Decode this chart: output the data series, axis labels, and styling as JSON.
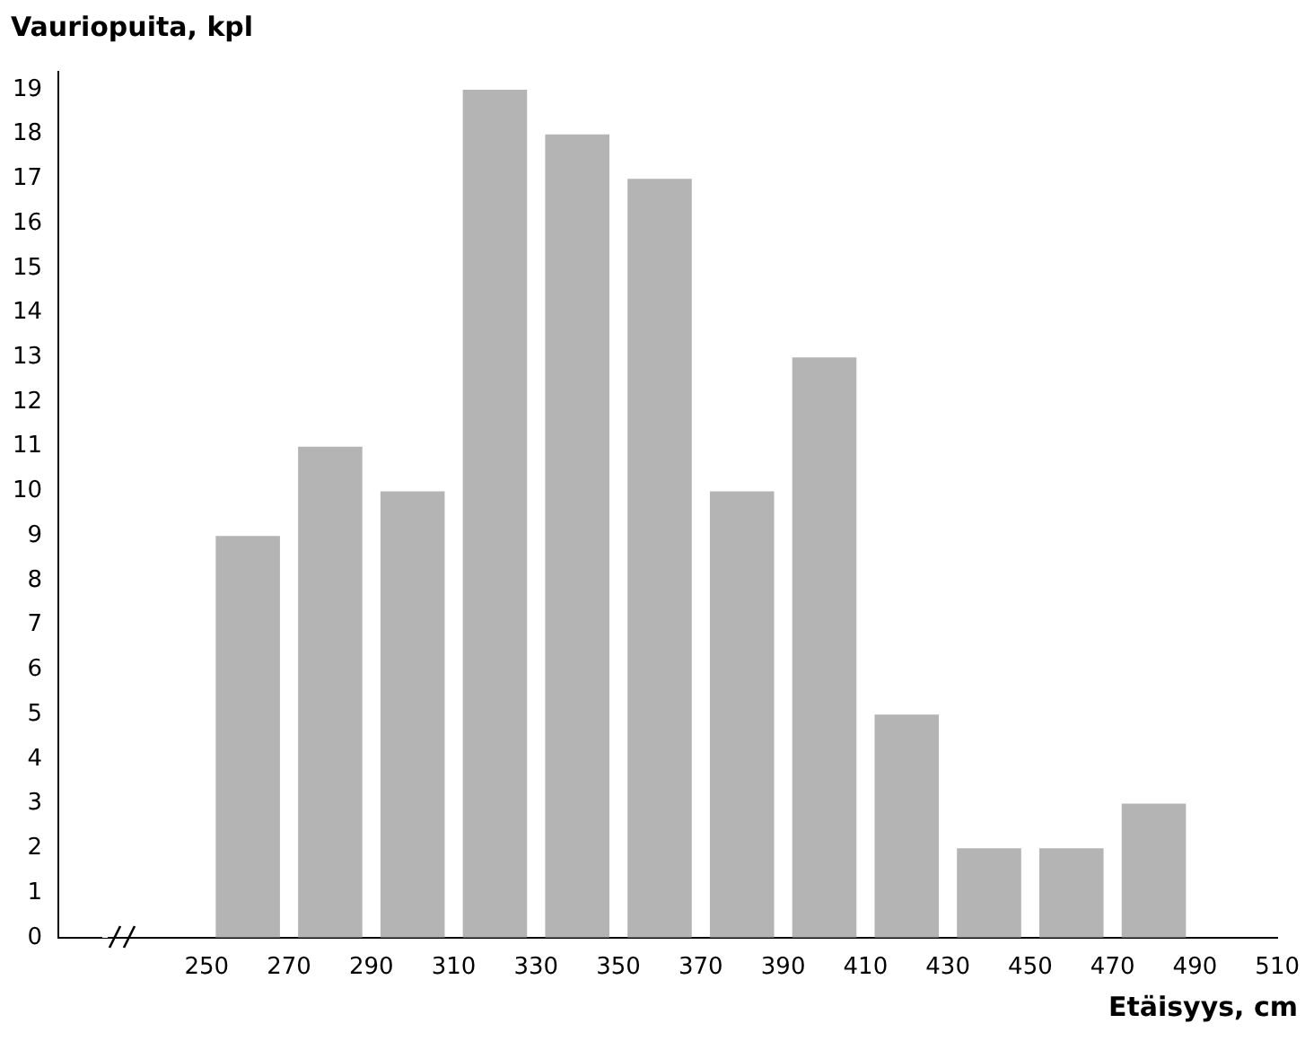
{
  "chart_data": {
    "type": "histogram",
    "xlabel": "Etäisyys, cm",
    "ylabel": "Vauriopuita, kpl",
    "bins": [
      250,
      270,
      290,
      310,
      330,
      350,
      370,
      390,
      410,
      430,
      450,
      470,
      490
    ],
    "values": [
      9,
      11,
      10,
      19,
      18,
      17,
      10,
      13,
      5,
      2,
      2,
      3
    ],
    "color": "#b4b4b4",
    "xlim": [
      214,
      510
    ],
    "xticks": [
      250,
      270,
      290,
      310,
      330,
      350,
      370,
      390,
      410,
      430,
      450,
      470,
      490,
      510
    ],
    "ylim": [
      0,
      19.4
    ],
    "yticks": [
      0,
      1,
      2,
      3,
      4,
      5,
      6,
      7,
      8,
      9,
      10,
      11,
      12,
      13,
      14,
      15,
      16,
      17,
      18,
      19
    ],
    "grid": false,
    "legend": false
  }
}
